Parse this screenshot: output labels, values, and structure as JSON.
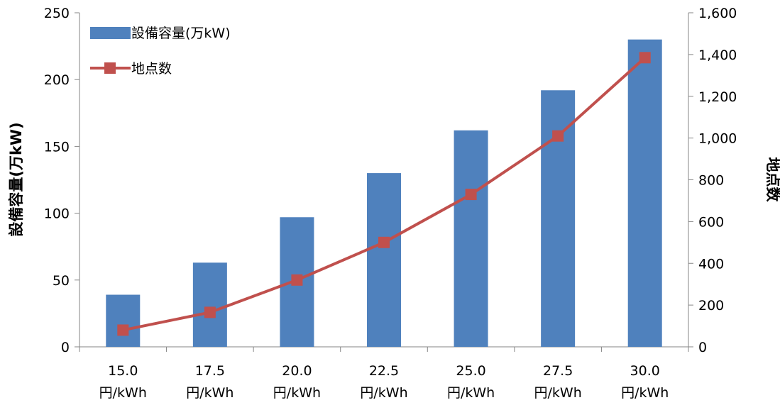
{
  "chart_data": {
    "type": "bar+line",
    "categories": [
      [
        "15.0",
        "円/kWh"
      ],
      [
        "17.5",
        "円/kWh"
      ],
      [
        "20.0",
        "円/kWh"
      ],
      [
        "22.5",
        "円/kWh"
      ],
      [
        "25.0",
        "円/kWh"
      ],
      [
        "27.5",
        "円/kWh"
      ],
      [
        "30.0",
        "円/kWh"
      ]
    ],
    "series": [
      {
        "name": "設備容量(万kW)",
        "type": "bar",
        "axis": "left",
        "color": "#4F81BD",
        "values": [
          39,
          63,
          97,
          130,
          162,
          192,
          230
        ]
      },
      {
        "name": "地点数",
        "type": "line",
        "axis": "right",
        "color": "#C0504D",
        "values": [
          80,
          165,
          320,
          500,
          730,
          1010,
          1385
        ]
      }
    ],
    "ylabel_left": "設備容量(万kW)",
    "ylabel_right": "地点数",
    "ylim_left": [
      0,
      250
    ],
    "yticks_left": [
      "0",
      "50",
      "100",
      "150",
      "200",
      "250"
    ],
    "ylim_right": [
      0,
      1600
    ],
    "yticks_right": [
      "0",
      "200",
      "400",
      "600",
      "800",
      "1,000",
      "1,200",
      "1,400",
      "1,600"
    ],
    "legend": "top-left",
    "grid": false
  }
}
